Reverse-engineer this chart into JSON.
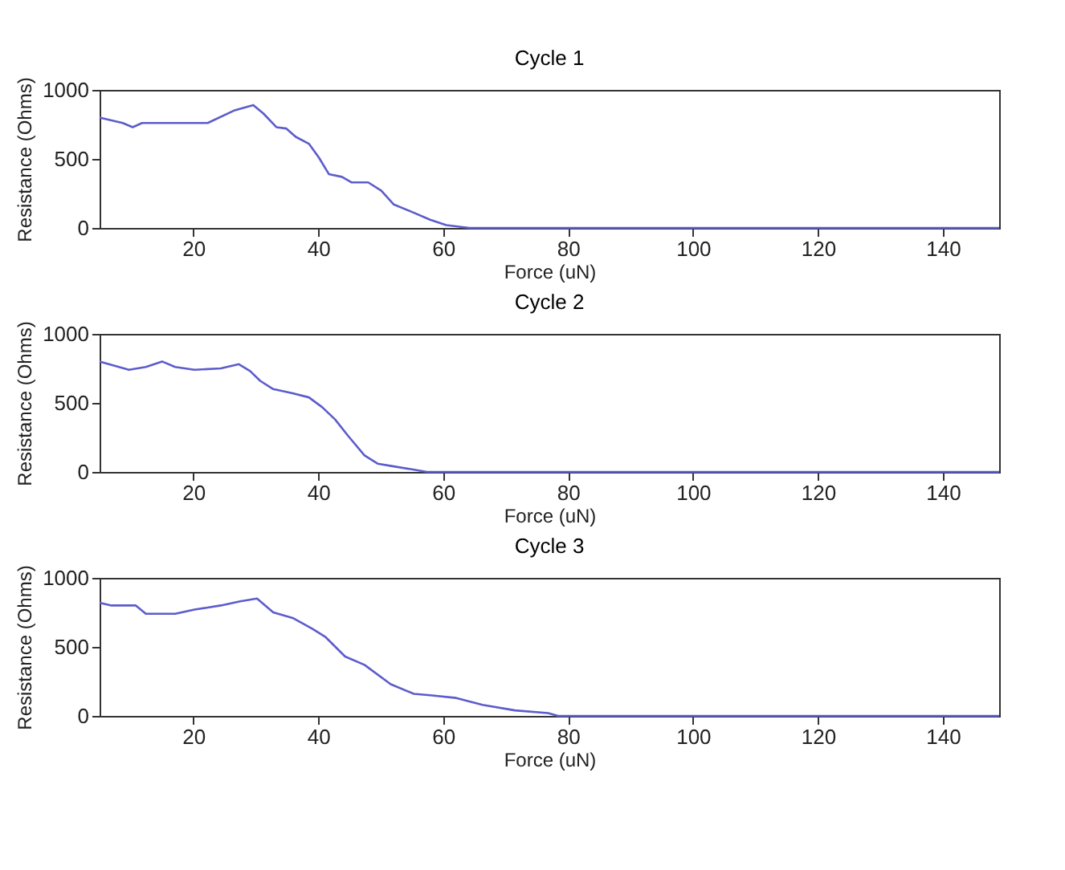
{
  "chart_data": [
    {
      "type": "line",
      "title": "Cycle 1",
      "xlabel": "Force (uN)",
      "ylabel": "Resistance (Ohms)",
      "xlim": [
        5,
        149
      ],
      "ylim": [
        0,
        1000
      ],
      "xticks": [
        20,
        40,
        60,
        80,
        100,
        120,
        140
      ],
      "yticks": [
        0,
        500,
        1000
      ],
      "grid": false,
      "marker": "none",
      "line_style": "solid",
      "series": [
        {
          "color": "#5c5ccc",
          "x": [
            5,
            8.7,
            10.3,
            11.8,
            22.3,
            26.5,
            29.6,
            31.2,
            33.3,
            34.9,
            36.4,
            38.5,
            40.1,
            41.7,
            43.8,
            45.3,
            48,
            50.1,
            52.1,
            54.8,
            57.9,
            60.5,
            64.2,
            149
          ],
          "values": [
            800,
            760,
            730,
            760,
            760,
            850,
            890,
            830,
            730,
            720,
            660,
            610,
            510,
            390,
            370,
            330,
            330,
            270,
            170,
            120,
            60,
            20,
            0,
            0
          ]
        }
      ]
    },
    {
      "type": "line",
      "title": "Cycle 2",
      "xlabel": "Force (uN)",
      "ylabel": "Resistance (Ohms)",
      "xlim": [
        5,
        149
      ],
      "ylim": [
        0,
        1000
      ],
      "xticks": [
        20,
        40,
        60,
        80,
        100,
        120,
        140
      ],
      "yticks": [
        0,
        500,
        1000
      ],
      "grid": false,
      "marker": "none",
      "line_style": "solid",
      "series": [
        {
          "color": "#5c5ccc",
          "x": [
            5,
            9.7,
            12.4,
            15,
            17.1,
            20.2,
            24.4,
            27.3,
            29.1,
            30.7,
            32.8,
            35.9,
            38.5,
            40.6,
            42.7,
            44.8,
            47.4,
            49.5,
            52.1,
            54.8,
            57.4,
            149
          ],
          "values": [
            800,
            740,
            760,
            800,
            760,
            740,
            750,
            780,
            730,
            660,
            600,
            570,
            540,
            470,
            380,
            260,
            120,
            60,
            40,
            20,
            0,
            0
          ]
        }
      ]
    },
    {
      "type": "line",
      "title": "Cycle 3",
      "xlabel": "Force (uN)",
      "ylabel": "Resistance (Ohms)",
      "xlim": [
        5,
        149
      ],
      "ylim": [
        0,
        1000
      ],
      "xticks": [
        20,
        40,
        60,
        80,
        100,
        120,
        140
      ],
      "yticks": [
        0,
        500,
        1000
      ],
      "grid": false,
      "marker": "none",
      "line_style": "solid",
      "series": [
        {
          "color": "#5c5ccc",
          "x": [
            5,
            6.9,
            10.8,
            12.4,
            17.1,
            20.2,
            24.4,
            27.5,
            30.2,
            32.8,
            35.9,
            39.1,
            41.2,
            44.3,
            47.4,
            51.6,
            55.3,
            57.9,
            62.1,
            66.3,
            71.5,
            76.8,
            78.4,
            149
          ],
          "values": [
            820,
            800,
            800,
            740,
            740,
            770,
            800,
            830,
            850,
            750,
            710,
            630,
            570,
            430,
            370,
            230,
            160,
            150,
            130,
            80,
            40,
            20,
            0,
            0
          ]
        }
      ]
    }
  ]
}
